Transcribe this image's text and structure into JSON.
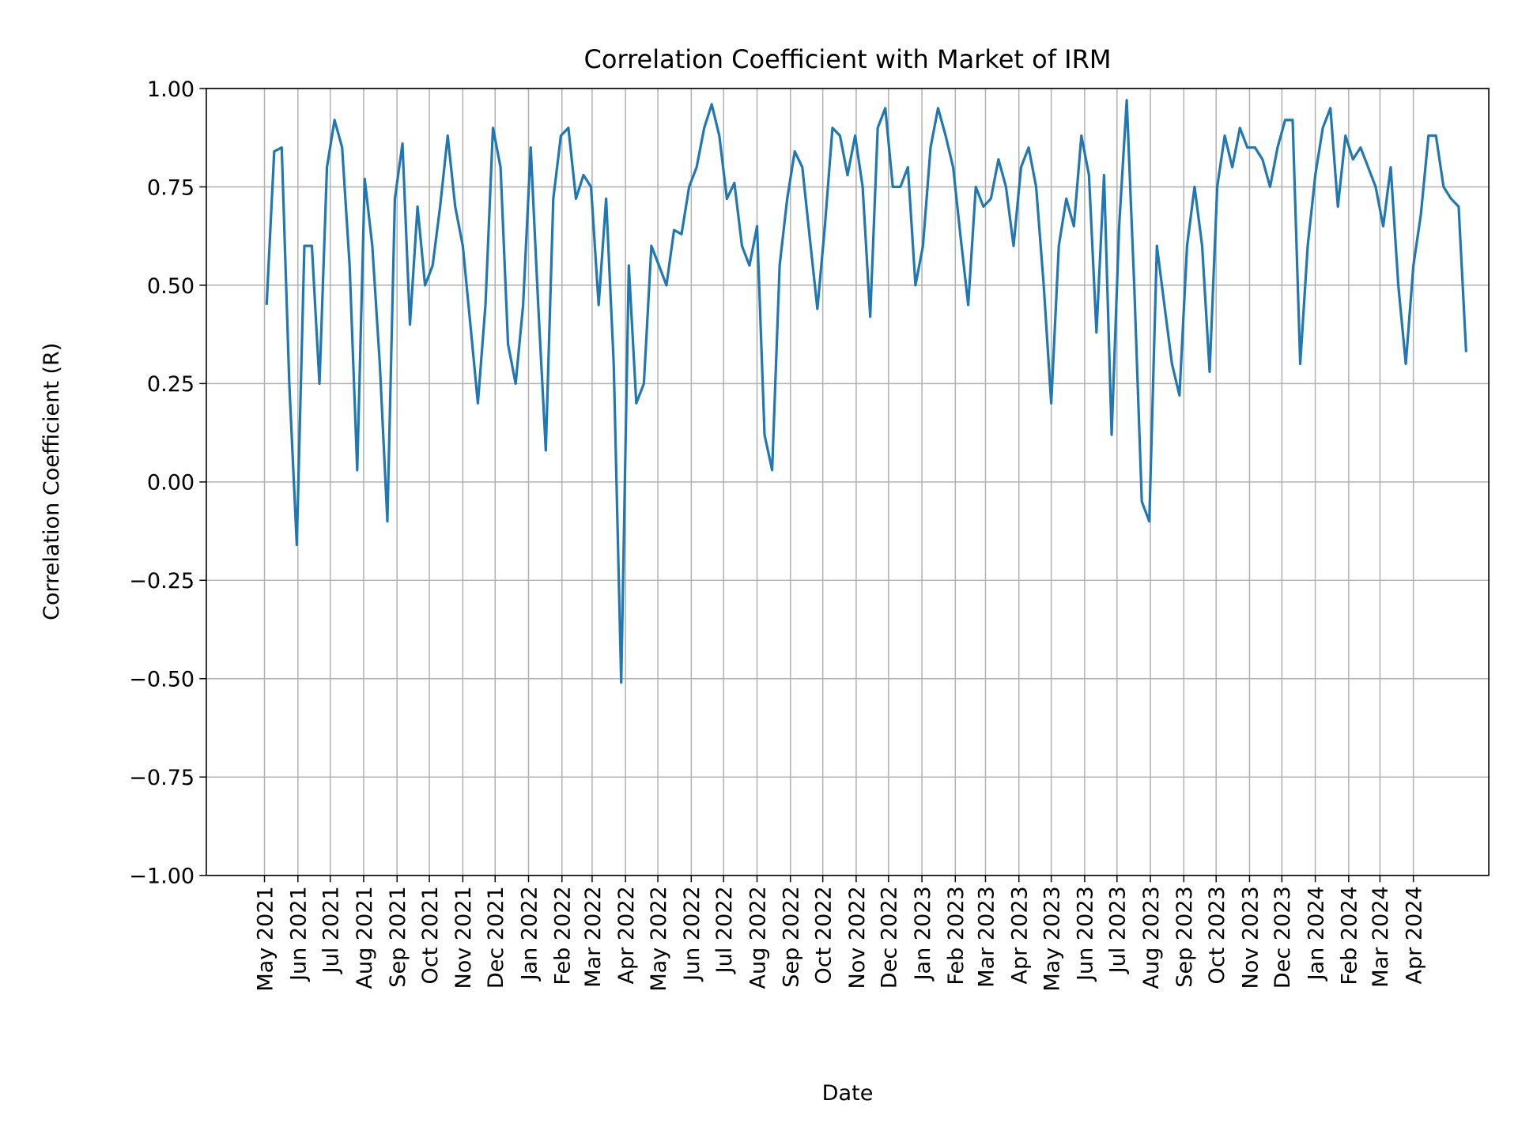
{
  "chart_data": {
    "type": "line",
    "title": "Correlation Coefficient with Market of IRM",
    "xlabel": "Date",
    "ylabel": "Correlation Coefficient (R)",
    "ylim": [
      -1.0,
      1.0
    ],
    "xlim": [
      "2021-03-08",
      "2024-06-10"
    ],
    "grid": true,
    "line_color": "#1f77b4",
    "y_ticks": [
      {
        "value": -1.0,
        "label": "−1.00"
      },
      {
        "value": -0.75,
        "label": "−0.75"
      },
      {
        "value": -0.5,
        "label": "−0.50"
      },
      {
        "value": -0.25,
        "label": "−0.25"
      },
      {
        "value": 0.0,
        "label": "0.00"
      },
      {
        "value": 0.25,
        "label": "0.25"
      },
      {
        "value": 0.5,
        "label": "0.50"
      },
      {
        "value": 0.75,
        "label": "0.75"
      },
      {
        "value": 1.0,
        "label": "1.00"
      }
    ],
    "x_ticks": [
      {
        "date": "2021-05-01",
        "label": "May 2021"
      },
      {
        "date": "2021-06-01",
        "label": "Jun 2021"
      },
      {
        "date": "2021-07-01",
        "label": "Jul 2021"
      },
      {
        "date": "2021-08-01",
        "label": "Aug 2021"
      },
      {
        "date": "2021-09-01",
        "label": "Sep 2021"
      },
      {
        "date": "2021-10-01",
        "label": "Oct 2021"
      },
      {
        "date": "2021-11-01",
        "label": "Nov 2021"
      },
      {
        "date": "2021-12-01",
        "label": "Dec 2021"
      },
      {
        "date": "2022-01-01",
        "label": "Jan 2022"
      },
      {
        "date": "2022-02-01",
        "label": "Feb 2022"
      },
      {
        "date": "2022-03-01",
        "label": "Mar 2022"
      },
      {
        "date": "2022-04-01",
        "label": "Apr 2022"
      },
      {
        "date": "2022-05-01",
        "label": "May 2022"
      },
      {
        "date": "2022-06-01",
        "label": "Jun 2022"
      },
      {
        "date": "2022-07-01",
        "label": "Jul 2022"
      },
      {
        "date": "2022-08-01",
        "label": "Aug 2022"
      },
      {
        "date": "2022-09-01",
        "label": "Sep 2022"
      },
      {
        "date": "2022-10-01",
        "label": "Oct 2022"
      },
      {
        "date": "2022-11-01",
        "label": "Nov 2022"
      },
      {
        "date": "2022-12-01",
        "label": "Dec 2022"
      },
      {
        "date": "2023-01-01",
        "label": "Jan 2023"
      },
      {
        "date": "2023-02-01",
        "label": "Feb 2023"
      },
      {
        "date": "2023-03-01",
        "label": "Mar 2023"
      },
      {
        "date": "2023-04-01",
        "label": "Apr 2023"
      },
      {
        "date": "2023-05-01",
        "label": "May 2023"
      },
      {
        "date": "2023-06-01",
        "label": "Jun 2023"
      },
      {
        "date": "2023-07-01",
        "label": "Jul 2023"
      },
      {
        "date": "2023-08-01",
        "label": "Aug 2023"
      },
      {
        "date": "2023-09-01",
        "label": "Sep 2023"
      },
      {
        "date": "2023-10-01",
        "label": "Oct 2023"
      },
      {
        "date": "2023-11-01",
        "label": "Nov 2023"
      },
      {
        "date": "2023-12-01",
        "label": "Dec 2023"
      },
      {
        "date": "2024-01-01",
        "label": "Jan 2024"
      },
      {
        "date": "2024-02-01",
        "label": "Feb 2024"
      },
      {
        "date": "2024-03-01",
        "label": "Mar 2024"
      },
      {
        "date": "2024-04-01",
        "label": "Apr 2024"
      }
    ],
    "x": [
      "2021-05-03",
      "2021-05-10",
      "2021-05-17",
      "2021-05-24",
      "2021-05-31",
      "2021-06-07",
      "2021-06-14",
      "2021-06-21",
      "2021-06-28",
      "2021-07-05",
      "2021-07-12",
      "2021-07-19",
      "2021-07-26",
      "2021-08-02",
      "2021-08-09",
      "2021-08-16",
      "2021-08-23",
      "2021-08-30",
      "2021-09-06",
      "2021-09-13",
      "2021-09-20",
      "2021-09-27",
      "2021-10-04",
      "2021-10-11",
      "2021-10-18",
      "2021-10-25",
      "2021-11-01",
      "2021-11-08",
      "2021-11-15",
      "2021-11-22",
      "2021-11-29",
      "2021-12-06",
      "2021-12-13",
      "2021-12-20",
      "2021-12-27",
      "2022-01-03",
      "2022-01-10",
      "2022-01-17",
      "2022-01-24",
      "2022-01-31",
      "2022-02-07",
      "2022-02-14",
      "2022-02-21",
      "2022-02-28",
      "2022-03-07",
      "2022-03-14",
      "2022-03-21",
      "2022-03-28",
      "2022-04-04",
      "2022-04-11",
      "2022-04-18",
      "2022-04-25",
      "2022-05-02",
      "2022-05-09",
      "2022-05-16",
      "2022-05-23",
      "2022-05-30",
      "2022-06-06",
      "2022-06-13",
      "2022-06-20",
      "2022-06-27",
      "2022-07-04",
      "2022-07-11",
      "2022-07-18",
      "2022-07-25",
      "2022-08-01",
      "2022-08-08",
      "2022-08-15",
      "2022-08-22",
      "2022-08-29",
      "2022-09-05",
      "2022-09-12",
      "2022-09-19",
      "2022-09-26",
      "2022-10-03",
      "2022-10-10",
      "2022-10-17",
      "2022-10-24",
      "2022-10-31",
      "2022-11-07",
      "2022-11-14",
      "2022-11-21",
      "2022-11-28",
      "2022-12-05",
      "2022-12-12",
      "2022-12-19",
      "2022-12-26",
      "2023-01-02",
      "2023-01-09",
      "2023-01-16",
      "2023-01-23",
      "2023-01-30",
      "2023-02-06",
      "2023-02-13",
      "2023-02-20",
      "2023-02-27",
      "2023-03-06",
      "2023-03-13",
      "2023-03-20",
      "2023-03-27",
      "2023-04-03",
      "2023-04-10",
      "2023-04-17",
      "2023-04-24",
      "2023-05-01",
      "2023-05-08",
      "2023-05-15",
      "2023-05-22",
      "2023-05-29",
      "2023-06-05",
      "2023-06-12",
      "2023-06-19",
      "2023-06-26",
      "2023-07-03",
      "2023-07-10",
      "2023-07-17",
      "2023-07-24",
      "2023-07-31",
      "2023-08-07",
      "2023-08-14",
      "2023-08-21",
      "2023-08-28",
      "2023-09-04",
      "2023-09-11",
      "2023-09-18",
      "2023-09-25",
      "2023-10-02",
      "2023-10-09",
      "2023-10-16",
      "2023-10-23",
      "2023-10-30",
      "2023-11-06",
      "2023-11-13",
      "2023-11-20",
      "2023-11-27",
      "2023-12-04",
      "2023-12-11",
      "2023-12-18",
      "2023-12-25",
      "2024-01-01",
      "2024-01-08",
      "2024-01-15",
      "2024-01-22",
      "2024-01-29",
      "2024-02-05",
      "2024-02-12",
      "2024-02-19",
      "2024-02-26",
      "2024-03-04",
      "2024-03-11",
      "2024-03-18",
      "2024-03-25",
      "2024-04-01",
      "2024-04-08",
      "2024-04-15",
      "2024-04-22",
      "2024-04-29",
      "2024-05-06",
      "2024-05-13",
      "2024-05-20"
    ],
    "y": [
      0.45,
      0.84,
      0.85,
      0.25,
      -0.16,
      0.6,
      0.6,
      0.25,
      0.8,
      0.92,
      0.85,
      0.55,
      0.03,
      0.77,
      0.6,
      0.3,
      -0.1,
      0.72,
      0.86,
      0.4,
      0.7,
      0.5,
      0.55,
      0.7,
      0.88,
      0.7,
      0.6,
      0.4,
      0.2,
      0.45,
      0.9,
      0.8,
      0.35,
      0.25,
      0.45,
      0.85,
      0.45,
      0.08,
      0.72,
      0.88,
      0.9,
      0.72,
      0.78,
      0.75,
      0.45,
      0.72,
      0.3,
      -0.51,
      0.55,
      0.2,
      0.25,
      0.6,
      0.55,
      0.5,
      0.64,
      0.63,
      0.75,
      0.8,
      0.9,
      0.96,
      0.88,
      0.72,
      0.76,
      0.6,
      0.55,
      0.65,
      0.12,
      0.03,
      0.55,
      0.72,
      0.84,
      0.8,
      0.62,
      0.44,
      0.65,
      0.9,
      0.88,
      0.78,
      0.88,
      0.75,
      0.42,
      0.9,
      0.95,
      0.75,
      0.75,
      0.8,
      0.5,
      0.6,
      0.85,
      0.95,
      0.88,
      0.8,
      0.62,
      0.45,
      0.75,
      0.7,
      0.72,
      0.82,
      0.75,
      0.6,
      0.8,
      0.85,
      0.75,
      0.5,
      0.2,
      0.6,
      0.72,
      0.65,
      0.88,
      0.78,
      0.38,
      0.78,
      0.12,
      0.65,
      0.97,
      0.5,
      -0.05,
      -0.1,
      0.6,
      0.45,
      0.3,
      0.22,
      0.6,
      0.75,
      0.6,
      0.28,
      0.75,
      0.88,
      0.8,
      0.9,
      0.85,
      0.85,
      0.82,
      0.75,
      0.85,
      0.92,
      0.92,
      0.3,
      0.6,
      0.78,
      0.9,
      0.95,
      0.7,
      0.88,
      0.82,
      0.85,
      0.8,
      0.75,
      0.65,
      0.8,
      0.5,
      0.3,
      0.55,
      0.68,
      0.88,
      0.88,
      0.75,
      0.72,
      0.7,
      0.33
    ]
  }
}
